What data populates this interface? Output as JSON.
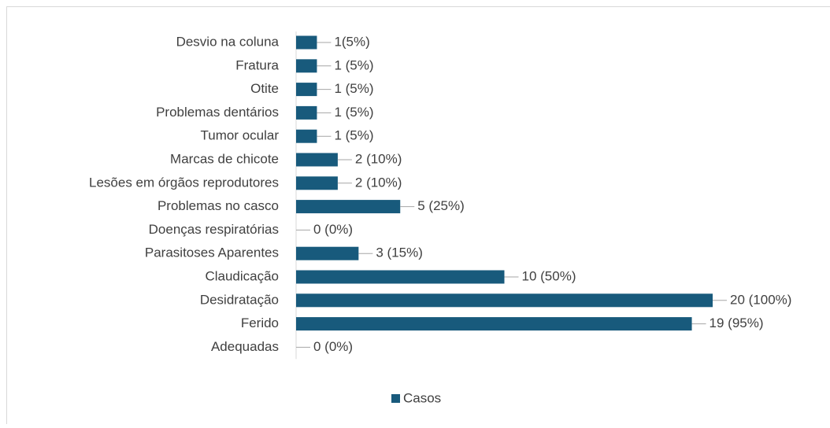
{
  "chart_data": {
    "type": "bar",
    "orientation": "horizontal",
    "categories": [
      "Desvio na coluna",
      "Fratura",
      "Otite",
      "Problemas dentários",
      "Tumor ocular",
      "Marcas de chicote",
      "Lesões em órgãos reprodutores",
      "Problemas no casco",
      "Doenças respiratórias",
      "Parasitoses Aparentes",
      "Claudicação",
      "Desidratação",
      "Ferido",
      "Adequadas"
    ],
    "series": [
      {
        "name": "Casos",
        "color": "#185a7c",
        "values": [
          1,
          1,
          1,
          1,
          1,
          2,
          2,
          5,
          0,
          3,
          10,
          20,
          19,
          0
        ],
        "value_labels": [
          "1(5%)",
          "1 (5%)",
          "1 (5%)",
          "1 (5%)",
          "1 (5%)",
          "2 (10%)",
          "2 (10%)",
          "5 (25%)",
          "0 (0%)",
          "3 (15%)",
          "10 (50%)",
          "20 (100%)",
          "19 (95%)",
          "0 (0%)"
        ]
      }
    ],
    "xlim": [
      0,
      20
    ],
    "legend": "bottom"
  }
}
